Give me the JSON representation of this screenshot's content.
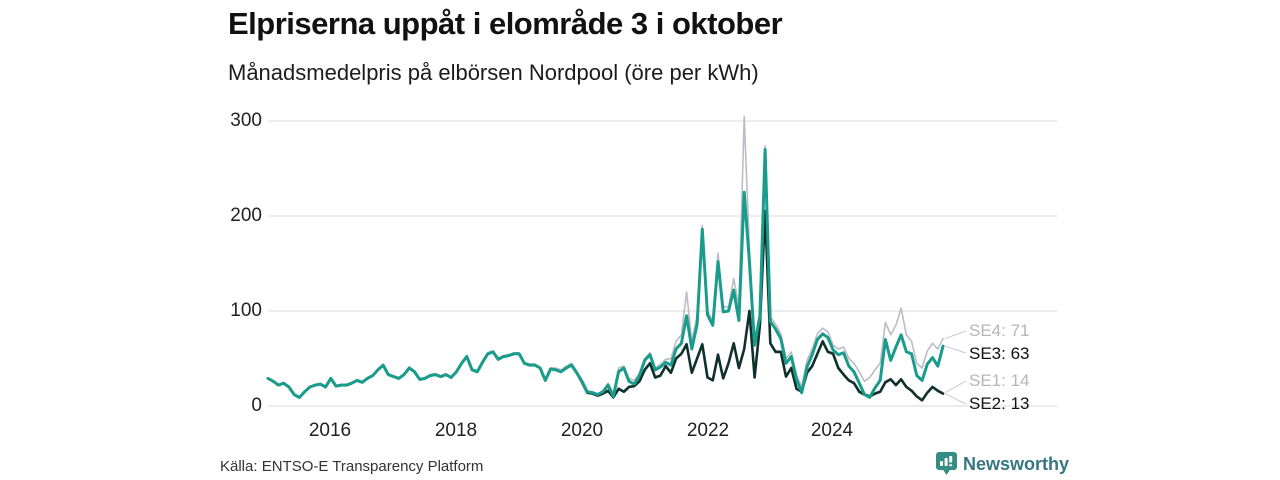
{
  "header": {
    "title": "Elpriserna uppåt i elområde 3 i oktober",
    "subtitle": "Månadsmedelpris på elbörsen Nordpool (öre per kWh)"
  },
  "footer": {
    "source": "Källa: ENTSO-E Transparency Platform",
    "brand": "Newsworthy"
  },
  "colors": {
    "teal": "#1a9c8c",
    "dark_teal": "#10312b",
    "light_gray_line": "#bcbcc4",
    "gridline": "#d8d8d8",
    "leader_line": "#c9c9d0",
    "brand_teal": "#37767f",
    "brand_icon": "#348c84"
  },
  "chart_data": {
    "type": "line",
    "title": "Elpriserna uppåt i elområde 3 i oktober",
    "subtitle": "Månadsmedelpris på elbörsen Nordpool (öre per kWh)",
    "unit": "öre per kWh",
    "x_start_month": "2015-01",
    "x_end_month": "2025-10",
    "x_tick_labels": [
      "2016",
      "2018",
      "2020",
      "2022",
      "2024"
    ],
    "y_tick_labels": [
      "0",
      "100",
      "200",
      "300"
    ],
    "y_ticks": [
      0,
      100,
      200,
      300
    ],
    "ylim": [
      0,
      310
    ],
    "grid": "horizontal",
    "legend_position": "right-end-labels",
    "series": [
      {
        "name": "SE4",
        "label": "SE4: 71",
        "end_value": 71,
        "color": "#bcbcc4",
        "width": 1.6,
        "values": [
          29,
          26,
          22,
          24,
          20,
          11,
          8,
          15,
          20,
          22,
          23,
          21,
          29,
          21,
          22,
          22,
          24,
          27,
          25,
          29,
          32,
          38,
          43,
          34,
          31,
          29,
          33,
          41,
          37,
          28,
          30,
          33,
          34,
          32,
          34,
          31,
          37,
          46,
          53,
          39,
          37,
          47,
          56,
          58,
          51,
          53,
          54,
          56,
          56,
          46,
          44,
          44,
          41,
          28,
          40,
          40,
          38,
          42,
          45,
          37,
          27,
          16,
          15,
          13,
          16,
          24,
          13,
          40,
          42,
          29,
          27,
          35,
          50,
          56,
          40,
          44,
          49,
          50,
          68,
          75,
          120,
          68,
          95,
          190,
          100,
          90,
          161,
          105,
          104,
          134,
          105,
          305,
          165,
          70,
          97,
          274,
          94,
          86,
          76,
          50,
          57,
          33,
          20,
          48,
          60,
          76,
          82,
          78,
          64,
          60,
          62,
          50,
          45,
          36,
          26,
          30,
          38,
          45,
          88,
          75,
          85,
          103,
          75,
          68,
          45,
          40,
          58,
          66,
          60,
          71
        ]
      },
      {
        "name": "SE1",
        "label": "SE1: 14",
        "end_value": 14,
        "color": "#bcbcc4",
        "width": 1.6,
        "values": [
          29,
          26,
          22,
          24,
          20,
          12,
          9,
          15,
          20,
          22,
          23,
          20,
          29,
          21,
          22,
          22,
          24,
          27,
          25,
          29,
          32,
          38,
          43,
          33,
          31,
          29,
          33,
          40,
          36,
          28,
          29,
          32,
          33,
          31,
          33,
          30,
          36,
          45,
          52,
          38,
          36,
          46,
          55,
          57,
          49,
          52,
          53,
          55,
          55,
          45,
          43,
          43,
          40,
          27,
          39,
          38,
          36,
          40,
          43,
          35,
          26,
          15,
          14,
          12,
          14,
          17,
          10,
          19,
          16,
          21,
          22,
          27,
          39,
          46,
          31,
          33,
          43,
          36,
          51,
          56,
          66,
          36,
          51,
          66,
          31,
          28,
          55,
          30,
          46,
          67,
          41,
          61,
          101,
          31,
          86,
          206,
          67,
          58,
          58,
          32,
          41,
          19,
          16,
          36,
          43,
          56,
          69,
          58,
          56,
          41,
          34,
          28,
          25,
          16,
          13,
          11,
          14,
          16,
          26,
          29,
          23,
          29,
          21,
          17,
          11,
          7,
          15,
          21,
          17,
          14
        ]
      },
      {
        "name": "SE2",
        "label": "SE2: 13",
        "end_value": 13,
        "color": "#10312b",
        "width": 2.6,
        "values": [
          29,
          26,
          22,
          24,
          20,
          12,
          9,
          15,
          20,
          22,
          23,
          20,
          29,
          21,
          22,
          22,
          24,
          27,
          25,
          29,
          32,
          38,
          43,
          33,
          31,
          29,
          33,
          40,
          36,
          28,
          29,
          32,
          33,
          31,
          33,
          30,
          36,
          45,
          52,
          38,
          36,
          46,
          55,
          57,
          49,
          52,
          53,
          55,
          55,
          45,
          43,
          43,
          40,
          27,
          39,
          38,
          36,
          40,
          43,
          35,
          25,
          14,
          13,
          11,
          13,
          16,
          9,
          18,
          15,
          20,
          21,
          26,
          38,
          45,
          30,
          32,
          42,
          35,
          50,
          55,
          65,
          35,
          50,
          65,
          30,
          27,
          54,
          29,
          45,
          66,
          40,
          60,
          100,
          30,
          85,
          205,
          66,
          57,
          57,
          31,
          40,
          18,
          15,
          35,
          42,
          55,
          68,
          57,
          55,
          40,
          33,
          27,
          24,
          15,
          12,
          10,
          13,
          15,
          25,
          28,
          22,
          28,
          20,
          16,
          10,
          6,
          14,
          20,
          16,
          13
        ]
      },
      {
        "name": "SE3",
        "label": "SE3: 63",
        "end_value": 63,
        "color": "#1a9c8c",
        "width": 3,
        "values": [
          29,
          26,
          22,
          24,
          20,
          12,
          9,
          15,
          20,
          22,
          23,
          20,
          29,
          21,
          22,
          22,
          24,
          27,
          25,
          29,
          32,
          38,
          43,
          33,
          31,
          29,
          33,
          40,
          36,
          28,
          29,
          32,
          33,
          31,
          33,
          30,
          36,
          45,
          52,
          38,
          36,
          46,
          55,
          57,
          49,
          52,
          53,
          55,
          55,
          45,
          43,
          43,
          40,
          27,
          39,
          38,
          36,
          40,
          43,
          35,
          26,
          15,
          14,
          12,
          15,
          22,
          10,
          36,
          40,
          26,
          23,
          32,
          48,
          54,
          38,
          41,
          46,
          43,
          60,
          66,
          95,
          60,
          86,
          186,
          96,
          85,
          152,
          99,
          100,
          122,
          90,
          225,
          152,
          64,
          95,
          270,
          89,
          81,
          71,
          45,
          52,
          28,
          14,
          41,
          54,
          70,
          76,
          72,
          59,
          54,
          56,
          42,
          36,
          24,
          12,
          9,
          19,
          27,
          70,
          48,
          62,
          75,
          57,
          55,
          32,
          27,
          44,
          51,
          42,
          63
        ]
      }
    ]
  }
}
